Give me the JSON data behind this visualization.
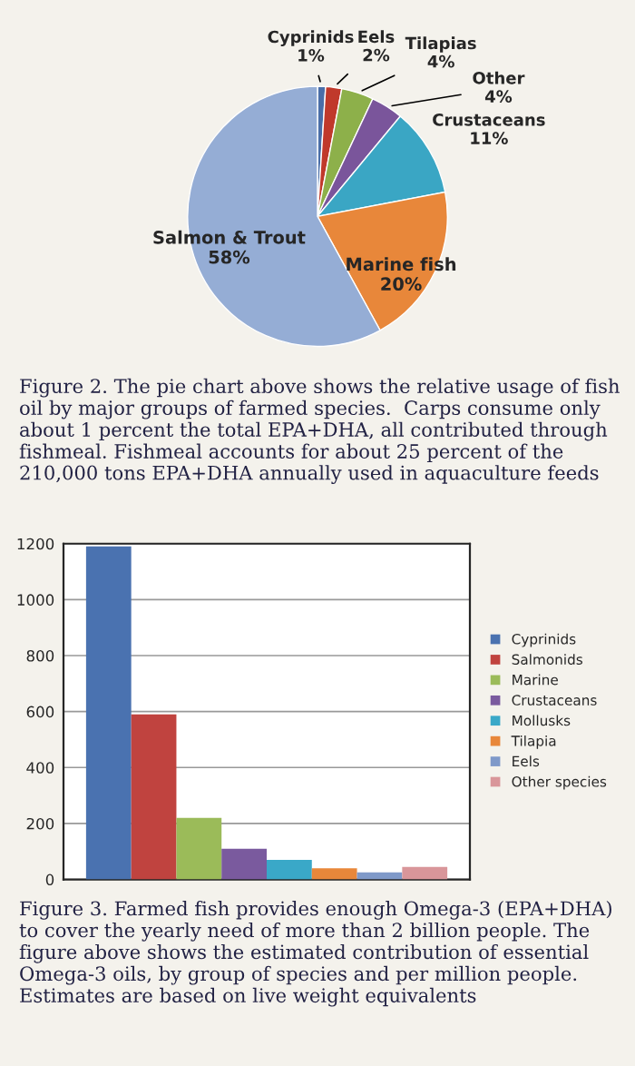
{
  "chart_data": [
    {
      "type": "pie",
      "categories": [
        "Cyprinids",
        "Eels",
        "Tilapias",
        "Other",
        "Crustaceans",
        "Marine fish",
        "Salmon & Trout"
      ],
      "values": [
        1,
        2,
        4,
        4,
        11,
        20,
        58
      ],
      "value_labels": [
        "1%",
        "2%",
        "4%",
        "4%",
        "11%",
        "20%",
        "58%"
      ],
      "colors": [
        "#4a6ea8",
        "#c0392b",
        "#8db04a",
        "#7a559b",
        "#3aa6c4",
        "#e8873a",
        "#95add5"
      ],
      "annotations": [
        "Figure 2. The pie chart above shows the relative usage of fish oil by major groups of farmed species.  Carps consume only about 1 percent the total EPA+DHA, all contributed through fishmeal. Fishmeal accounts for about 25 percent of the 210,000 tons EPA+DHA annually used in aquaculture feeds"
      ]
    },
    {
      "type": "bar",
      "categories": [
        null
      ],
      "ylim": [
        0,
        1200
      ],
      "yticks": [
        0,
        200,
        400,
        600,
        800,
        1000,
        1200
      ],
      "grid": "y",
      "legend": "right",
      "tick_labels": "y",
      "series": [
        {
          "name": "Cyprinids",
          "color": "#4a72b0",
          "values": [
            1190
          ]
        },
        {
          "name": "Salmonids",
          "color": "#c0433f",
          "values": [
            590
          ]
        },
        {
          "name": "Marine",
          "color": "#9bbb59",
          "values": [
            220
          ]
        },
        {
          "name": "Crustaceans",
          "color": "#7a5a9e",
          "values": [
            110
          ]
        },
        {
          "name": "Mollusks",
          "color": "#3aa8c8",
          "values": [
            70
          ]
        },
        {
          "name": "Tilapia",
          "color": "#e8873a",
          "values": [
            40
          ]
        },
        {
          "name": "Eels",
          "color": "#7f99c9",
          "values": [
            25
          ]
        },
        {
          "name": "Other species",
          "color": "#d9969a",
          "values": [
            45
          ]
        }
      ],
      "annotations": [
        "Figure 3. Farmed fish provides enough Omega-3 (EPA+DHA) to cover the yearly need of more than 2 billion people. The figure above shows the estimated contribution of essential Omega-3 oils, by group of species and per million people. Estimates are based on live weight equivalents"
      ]
    }
  ]
}
